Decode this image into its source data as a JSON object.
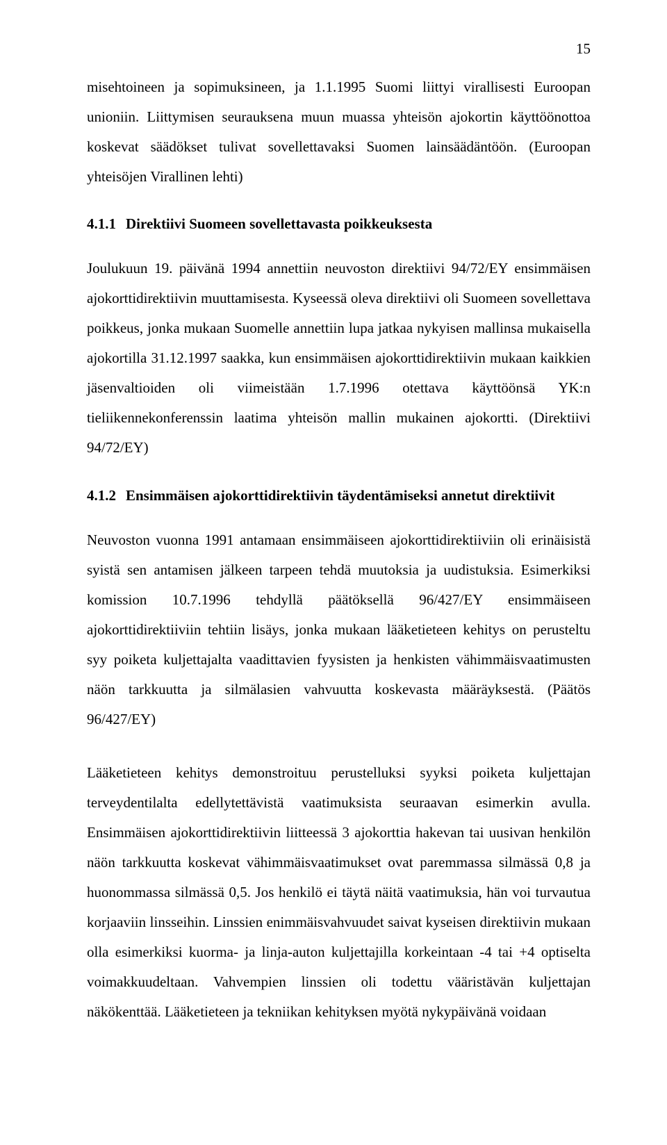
{
  "page": {
    "number": "15"
  },
  "paragraphs": {
    "p1": "misehtoineen ja sopimuksineen, ja 1.1.1995 Suomi liittyi virallisesti Euroopan unioniin. Liittymisen seurauksena muun muassa yhteisön ajokortin käyttöönottoa koskevat säädökset tulivat sovellettavaksi Suomen lainsäädäntöön. (Euroopan yhteisöjen Virallinen lehti)",
    "p2": "Joulukuun 19. päivänä 1994 annettiin neuvoston direktiivi 94/72/EY ensimmäisen ajokorttidirektiivin muuttamisesta. Kyseessä oleva direktiivi oli Suomeen sovellettava poikkeus, jonka mukaan Suomelle annettiin lupa jatkaa nykyisen mallinsa mukaisella ajokortilla 31.12.1997 saakka, kun ensimmäisen ajokorttidirektiivin mukaan kaikkien jäsenvaltioiden oli viimeistään 1.7.1996 otettava käyttöönsä YK:n tieliikennekonferenssin laatima yhteisön mallin mukainen ajokortti. (Direktiivi 94/72/EY)",
    "p3": "Neuvoston vuonna 1991 antamaan ensimmäiseen ajokorttidirektiiviin oli erinäisistä syistä sen antamisen jälkeen tarpeen tehdä muutoksia ja uudistuksia. Esimerkiksi komission 10.7.1996 tehdyllä päätöksellä 96/427/EY ensimmäiseen ajokorttidirektiiviin tehtiin lisäys, jonka mukaan lääketieteen kehitys on perusteltu syy poiketa kuljettajalta vaadittavien fyysisten ja henkisten vähimmäisvaatimusten näön tarkkuutta ja silmälasien vahvuutta koskevasta määräyksestä. (Päätös 96/427/EY)",
    "p4": "Lääketieteen kehitys demonstroituu perustelluksi syyksi poiketa kuljettajan terveydentilalta edellytettävistä vaatimuksista seuraavan esimerkin avulla. Ensimmäisen ajokorttidirektiivin liitteessä 3 ajokorttia hakevan tai uusivan henkilön näön tarkkuutta koskevat vähimmäisvaatimukset ovat paremmassa silmässä 0,8 ja huonommassa silmässä 0,5. Jos henkilö ei täytä näitä vaatimuksia, hän voi turvautua korjaaviin linsseihin. Linssien enimmäisvahvuudet saivat kyseisen direktiivin mukaan olla esimerkiksi kuorma- ja linja-auton kuljettajilla korkeintaan -4 tai +4 optiselta voimakkuudeltaan. Vahvempien linssien oli todettu vääristävän kuljettajan näkökenttää. Lääketieteen ja tekniikan kehityksen myötä nykypäivänä voidaan"
  },
  "headings": {
    "h1": {
      "number": "4.1.1",
      "title": "Direktiivi Suomeen sovellettavasta poikkeuksesta"
    },
    "h2": {
      "number": "4.1.2",
      "title": "Ensimmäisen ajokorttidirektiivin täydentämiseksi annetut direktiivit"
    }
  }
}
